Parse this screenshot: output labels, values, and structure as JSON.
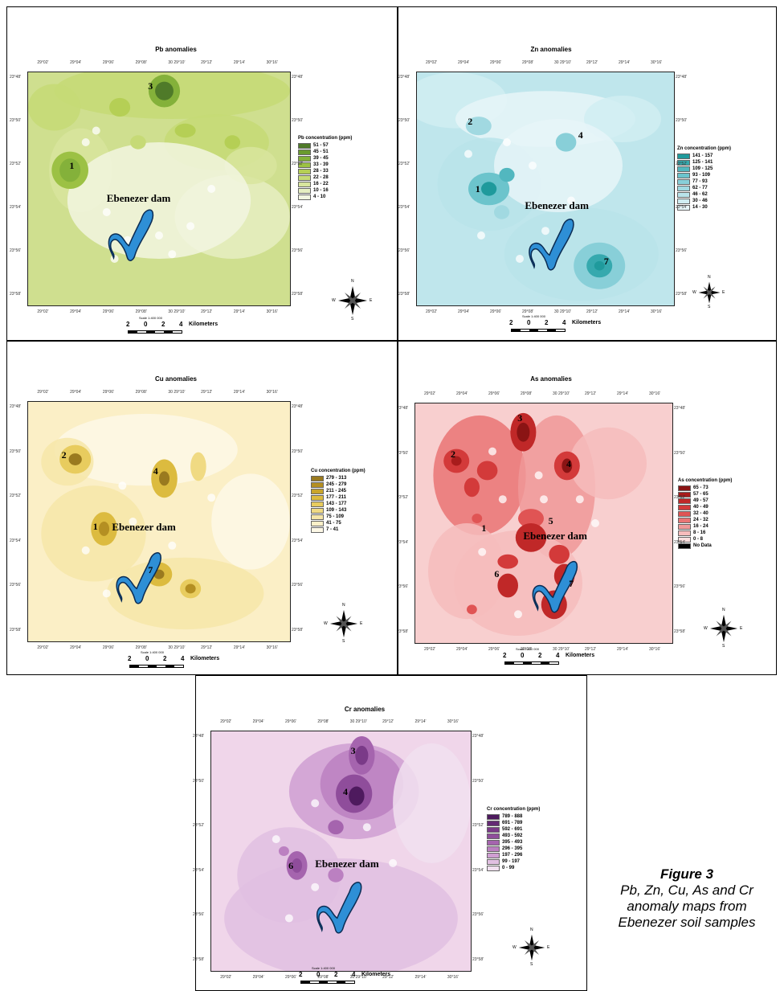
{
  "dam_label": "Ebenezer dam",
  "compass": {
    "n": "N",
    "s": "S",
    "e": "E",
    "w": "W"
  },
  "scale": {
    "ticks": [
      "2",
      "0",
      "2",
      "4"
    ],
    "unit": "Kilometers",
    "ratio": "Scale 1:400 000"
  },
  "caption": {
    "title": "Figure 3",
    "text": "Pb, Zn, Cu, As and Cr anomaly maps from Ebenezer soil samples"
  },
  "maps": [
    {
      "id": "pb",
      "title": "Pb anomalies",
      "legend_title": "Pb concentration (ppm)",
      "base_color": "#cfdf8f",
      "ranges": [
        {
          "label": "51 - 57",
          "color": "#4f7a29"
        },
        {
          "label": "45 - 51",
          "color": "#6a9a2f"
        },
        {
          "label": "39 - 45",
          "color": "#84b13a"
        },
        {
          "label": "33 - 39",
          "color": "#9cc144"
        },
        {
          "label": "28 - 33",
          "color": "#b5cf55"
        },
        {
          "label": "22 - 28",
          "color": "#c6da76"
        },
        {
          "label": "16 - 22",
          "color": "#d8e59d"
        },
        {
          "label": "10 - 16",
          "color": "#e6efc2"
        },
        {
          "label": "4 - 10",
          "color": "#f2f6e1"
        }
      ],
      "sites": [
        "3",
        "1"
      ],
      "top_ticks": [
        "29°02'",
        "29°04'",
        "29°06'",
        "29°08'",
        "30\n29°10'",
        "29°12'",
        "29°14'",
        "30°16'"
      ],
      "side_ticks": [
        "23°48'",
        "23°50'",
        "23°52'",
        "23°54'",
        "23°56'",
        "23°58'"
      ]
    },
    {
      "id": "zn",
      "title": "Zn anomalies",
      "legend_title": "Zn concentration (ppm)",
      "base_color": "#bfe6ec",
      "ranges": [
        {
          "label": "141 - 157",
          "color": "#1f9a9c"
        },
        {
          "label": "125 - 141",
          "color": "#36a9ae"
        },
        {
          "label": "109 - 125",
          "color": "#52b7bf"
        },
        {
          "label": "93 - 109",
          "color": "#6cc4cc"
        },
        {
          "label": "77 - 93",
          "color": "#88cfd8"
        },
        {
          "label": "62 - 77",
          "color": "#a1d9e1"
        },
        {
          "label": "46 - 62",
          "color": "#b9e3ea"
        },
        {
          "label": "30 - 46",
          "color": "#d0edf2"
        },
        {
          "label": "14 - 30",
          "color": "#e6f5f8"
        }
      ],
      "sites": [
        "2",
        "4",
        "1",
        "7"
      ],
      "top_ticks": [
        "29°02'",
        "29°04'",
        "29°06'",
        "29°08'",
        "30\n29°10'",
        "29°12'",
        "29°14'",
        "30°16'"
      ],
      "side_ticks": [
        "23°48'",
        "23°50'",
        "23°52'",
        "23°54'",
        "23°56'",
        "23°58'"
      ]
    },
    {
      "id": "cu",
      "title": "Cu anomalies",
      "legend_title": "Cu concentration (ppm)",
      "base_color": "#fbefc6",
      "ranges": [
        {
          "label": "279 - 313",
          "color": "#9a7a1f"
        },
        {
          "label": "245 - 279",
          "color": "#b48f22"
        },
        {
          "label": "211 - 245",
          "color": "#c9a52c"
        },
        {
          "label": "177 - 211",
          "color": "#dcbb3f"
        },
        {
          "label": "143 - 177",
          "color": "#e8cc5e"
        },
        {
          "label": "109 - 143",
          "color": "#f0da83"
        },
        {
          "label": "75 - 109",
          "color": "#f6e6a8"
        },
        {
          "label": "41 - 75",
          "color": "#faf0c8"
        },
        {
          "label": "7 - 41",
          "color": "#fdf8e6"
        }
      ],
      "sites": [
        "2",
        "4",
        "1",
        "7"
      ],
      "top_ticks": [
        "29°02'",
        "29°04'",
        "29°06'",
        "29°08'",
        "30\n29°10'",
        "29°12'",
        "29°14'",
        "30°16'"
      ],
      "side_ticks": [
        "23°48'",
        "23°50'",
        "23°52'",
        "23°54'",
        "23°56'",
        "23°58'"
      ]
    },
    {
      "id": "as",
      "title": "As anomalies",
      "legend_title": "As concentration (ppm)",
      "base_color": "#f8cfcf",
      "ranges": [
        {
          "label": "65 - 73",
          "color": "#8a1414"
        },
        {
          "label": "57 - 65",
          "color": "#a81c1c"
        },
        {
          "label": "49 - 57",
          "color": "#c02828"
        },
        {
          "label": "40 - 49",
          "color": "#d33a3a"
        },
        {
          "label": "32 - 40",
          "color": "#e05454"
        },
        {
          "label": "24 - 32",
          "color": "#ea7474"
        },
        {
          "label": "16 - 24",
          "color": "#f09898"
        },
        {
          "label": "8 - 16",
          "color": "#f6bcbc"
        },
        {
          "label": "0 - 8",
          "color": "#fbdede"
        },
        {
          "label": "No Data",
          "color": "#000000"
        }
      ],
      "sites": [
        "3",
        "2",
        "4",
        "1",
        "5",
        "6",
        "7"
      ],
      "top_ticks": [
        "29°02'",
        "29°04'",
        "29°06'",
        "29°08'",
        "30\n29°10'",
        "29°12'",
        "29°14'",
        "30°16'"
      ],
      "side_ticks": [
        "23°48'",
        "23°50'",
        "23°52'",
        "23°54'",
        "23°56'",
        "23°58'"
      ]
    },
    {
      "id": "cr",
      "title": "Cr anomalies",
      "legend_title": "Cr concentration (ppm)",
      "base_color": "#f0d6ea",
      "ranges": [
        {
          "label": "789 - 888",
          "color": "#4e1a5e"
        },
        {
          "label": "691 - 789",
          "color": "#642a74"
        },
        {
          "label": "592 - 691",
          "color": "#7a3a88"
        },
        {
          "label": "493 - 592",
          "color": "#8f4d9b"
        },
        {
          "label": "395 - 493",
          "color": "#a564ae"
        },
        {
          "label": "296 - 395",
          "color": "#bb80c1"
        },
        {
          "label": "197 - 296",
          "color": "#cf9fd2"
        },
        {
          "label": "99 - 197",
          "color": "#e1c0e2"
        },
        {
          "label": "0 - 99",
          "color": "#f1e0f0"
        }
      ],
      "sites": [
        "3",
        "4",
        "6"
      ],
      "top_ticks": [
        "29°02'",
        "29°04'",
        "29°06'",
        "29°08'",
        "30\n29°10'",
        "29°12'",
        "29°14'",
        "30°16'"
      ],
      "side_ticks": [
        "23°48'",
        "23°50'",
        "23°52'",
        "23°54'",
        "23°56'",
        "23°58'"
      ]
    }
  ]
}
